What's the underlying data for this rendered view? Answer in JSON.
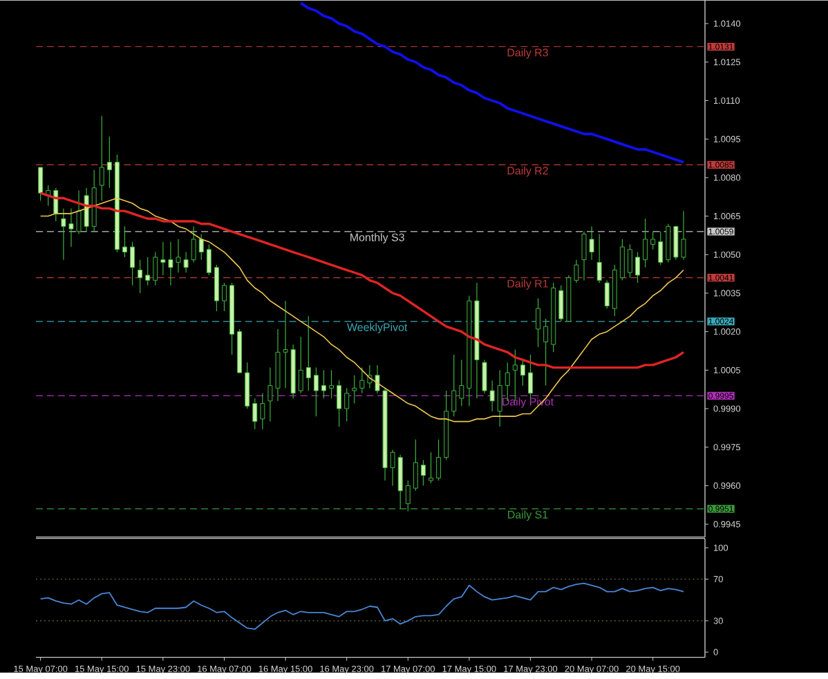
{
  "chart_data": [
    {
      "type": "candlestick",
      "categories": [
        null,
        null,
        null,
        null,
        null,
        null,
        null,
        null,
        null,
        null,
        null,
        null,
        null,
        null,
        null,
        null,
        null,
        null,
        null,
        null,
        null,
        null,
        null,
        null,
        null,
        null,
        null,
        null,
        null,
        null,
        null,
        null,
        null,
        null,
        null,
        null,
        null,
        null,
        null,
        null,
        null,
        null,
        null,
        null,
        null,
        null,
        null,
        null,
        null,
        null,
        null,
        null,
        null,
        null,
        null,
        null,
        null,
        null,
        null,
        null,
        null,
        null,
        null,
        null,
        null,
        null,
        null,
        null,
        null,
        null,
        null,
        null,
        null,
        null,
        null,
        null,
        null,
        null,
        null,
        null,
        null,
        null,
        null,
        null,
        null
      ],
      "ohlc": [
        [
          1.0084,
          1.0084,
          1.0071,
          1.0074
        ],
        [
          1.0073,
          1.0077,
          1.0069,
          1.0075
        ],
        [
          1.0075,
          1.0076,
          1.0063,
          1.0066
        ],
        [
          1.0064,
          1.0068,
          1.0048,
          1.0061
        ],
        [
          1.0062,
          1.0068,
          1.0053,
          1.006
        ],
        [
          1.0059,
          1.0075,
          1.0058,
          1.0067
        ],
        [
          1.0073,
          1.0076,
          1.0059,
          1.0061
        ],
        [
          1.0061,
          1.0083,
          1.0059,
          1.0076
        ],
        [
          1.0077,
          1.0104,
          1.0071,
          1.0084
        ],
        [
          1.0086,
          1.0096,
          1.0076,
          1.0083
        ],
        [
          1.0086,
          1.0089,
          1.0051,
          1.0052
        ],
        [
          1.0053,
          1.0061,
          1.0049,
          1.0051
        ],
        [
          1.0053,
          1.0055,
          1.0038,
          1.0045
        ],
        [
          1.0044,
          1.0048,
          1.0035,
          1.0041
        ],
        [
          1.0042,
          1.0049,
          1.0038,
          1.004
        ],
        [
          1.004,
          1.0051,
          1.0038,
          1.0049
        ],
        [
          1.0048,
          1.0055,
          1.0042,
          1.0047
        ],
        [
          1.0048,
          1.0055,
          1.0038,
          1.0045
        ],
        [
          1.0047,
          1.0056,
          1.0043,
          1.0049
        ],
        [
          1.0048,
          1.0051,
          1.0043,
          1.0045
        ],
        [
          1.0048,
          1.0061,
          1.0047,
          1.0056
        ],
        [
          1.0056,
          1.0058,
          1.0048,
          1.0051
        ],
        [
          1.0052,
          1.0054,
          1.0042,
          1.0043
        ],
        [
          1.0045,
          1.0046,
          1.0028,
          1.0032
        ],
        [
          1.0032,
          1.0039,
          1.0028,
          1.0038
        ],
        [
          1.0038,
          1.0039,
          1.0011,
          1.0019
        ],
        [
          1.002,
          1.0021,
          1.0004,
          1.0004
        ],
        [
          1.0004,
          1.0008,
          0.999,
          0.9991
        ],
        [
          0.9992,
          0.9994,
          0.9982,
          0.9985
        ],
        [
          0.9986,
          0.9996,
          0.9982,
          0.9992
        ],
        [
          0.9993,
          1.0006,
          0.9985,
          0.9999
        ],
        [
          0.9998,
          1.0021,
          0.9993,
          1.0012
        ],
        [
          1.0012,
          1.0032,
          0.9998,
          1.0013
        ],
        [
          1.0013,
          1.0015,
          0.9994,
          0.9996
        ],
        [
          0.9997,
          1.0018,
          0.9996,
          1.0005
        ],
        [
          1.0006,
          1.0026,
          0.9997,
          1.0002
        ],
        [
          1.0003,
          1.0006,
          0.9987,
          0.9997
        ],
        [
          0.9999,
          1.0005,
          0.9994,
          0.9997
        ],
        [
          0.9998,
          1.0005,
          0.9994,
          0.9999
        ],
        [
          0.9999,
          1.0001,
          0.9983,
          0.999
        ],
        [
          0.999,
          0.9998,
          0.9985,
          0.9996
        ],
        [
          0.9997,
          1.0003,
          0.9992,
          0.9998
        ],
        [
          0.9998,
          1.0006,
          0.9996,
          1.0001
        ],
        [
          1.0,
          1.0007,
          0.9998,
          1.0003
        ],
        [
          1.0003,
          1.0007,
          0.9996,
          0.9997
        ],
        [
          0.9997,
          0.9998,
          0.9962,
          0.9967
        ],
        [
          0.9967,
          0.9974,
          0.996,
          0.9973
        ],
        [
          0.9971,
          0.9972,
          0.9951,
          0.9958
        ],
        [
          0.9953,
          0.9962,
          0.995,
          0.996
        ],
        [
          0.9959,
          0.9978,
          0.9958,
          0.9969
        ],
        [
          0.9968,
          0.997,
          0.996,
          0.9964
        ],
        [
          0.9962,
          0.9973,
          0.9961,
          0.9963
        ],
        [
          0.9963,
          0.9978,
          0.9962,
          0.9971
        ],
        [
          0.9971,
          0.9997,
          0.997,
          0.9989
        ],
        [
          0.9989,
          1.0011,
          0.9987,
          0.9997
        ],
        [
          0.9994,
          1.0009,
          0.9991,
          0.9999
        ],
        [
          0.9998,
          1.0034,
          0.9991,
          1.0032
        ],
        [
          1.0032,
          1.0039,
          0.9994,
          1.0009
        ],
        [
          1.0008,
          1.0009,
          0.9996,
          0.9997
        ],
        [
          0.9997,
          1.0001,
          0.9989,
          0.9993
        ],
        [
          0.9989,
          1.0005,
          0.9983,
          0.9999
        ],
        [
          0.9999,
          1.0008,
          0.9993,
          1.0004
        ],
        [
          1.0005,
          1.0013,
          0.9993,
          1.0007
        ],
        [
          1.0007,
          1.0009,
          0.9999,
          1.0003
        ],
        [
          1.0004,
          1.0011,
          0.9994,
          0.9996
        ],
        [
          1.0021,
          1.0033,
          1.0014,
          1.0029
        ],
        [
          1.0016,
          1.0025,
          0.9999,
          1.0022
        ],
        [
          1.0015,
          1.0039,
          1.0012,
          1.0037
        ],
        [
          1.0036,
          1.0038,
          1.0024,
          1.0025
        ],
        [
          1.0024,
          1.0042,
          1.0024,
          1.0041
        ],
        [
          1.004,
          1.0048,
          1.0039,
          1.0046
        ],
        [
          1.0048,
          1.0059,
          1.004,
          1.0058
        ],
        [
          1.0056,
          1.0061,
          1.0048,
          1.0051
        ],
        [
          1.0047,
          1.0058,
          1.0039,
          1.004
        ],
        [
          1.0039,
          1.004,
          1.0029,
          1.003
        ],
        [
          1.0029,
          1.0046,
          1.0026,
          1.0044
        ],
        [
          1.0041,
          1.0056,
          1.004,
          1.0053
        ],
        [
          1.0043,
          1.0054,
          1.0041,
          1.0052
        ],
        [
          1.0049,
          1.0051,
          1.0039,
          1.0042
        ],
        [
          1.0048,
          1.0064,
          1.0045,
          1.0056
        ],
        [
          1.0054,
          1.0059,
          1.0052,
          1.0056
        ],
        [
          1.0055,
          1.0059,
          1.0046,
          1.0047
        ],
        [
          1.0048,
          1.0062,
          1.0047,
          1.0061
        ],
        [
          1.0061,
          1.0061,
          1.0048,
          1.0049
        ],
        [
          1.0049,
          1.0067,
          1.0048,
          1.0056
        ]
      ],
      "series": [
        {
          "type": "line",
          "color": "#f0c850",
          "values": [
            1.0065,
            1.0065,
            1.0066,
            1.0066,
            1.0066,
            1.0067,
            1.0068,
            1.0069,
            1.007,
            1.0071,
            1.0072,
            1.0071,
            1.007,
            1.0068,
            1.0067,
            1.0065,
            1.0064,
            1.0063,
            1.0061,
            1.006,
            1.0058,
            1.0056,
            1.0055,
            1.0053,
            1.0051,
            1.0048,
            1.0045,
            1.004,
            1.0037,
            1.0035,
            1.0032,
            1.003,
            1.0028,
            1.0026,
            1.0024,
            1.0022,
            1.002,
            1.0018,
            1.0015,
            1.0013,
            1.001,
            1.0008,
            1.0005,
            1.0002,
            1.0,
            0.9998,
            0.9996,
            0.9994,
            0.9992,
            0.9991,
            0.9989,
            0.9987,
            0.9986,
            0.9986,
            0.9985,
            0.9985,
            0.9985,
            0.9986,
            0.9986,
            0.9987,
            0.9987,
            0.9987,
            0.9987,
            0.9988,
            0.9988,
            0.9991,
            0.9994,
            0.9998,
            1.0002,
            1.0005,
            1.0009,
            1.0013,
            1.0017,
            1.0019,
            1.002,
            1.0022,
            1.0024,
            1.0026,
            1.0029,
            1.0031,
            1.0034,
            1.0036,
            1.0039,
            1.0041,
            1.0044
          ]
        },
        {
          "type": "line",
          "color": "#e02424",
          "values": [
            1.0074,
            1.0073,
            1.0072,
            1.0072,
            1.0071,
            1.007,
            1.0069,
            1.0069,
            1.0068,
            1.0068,
            1.0067,
            1.0067,
            1.0066,
            1.0065,
            1.0064,
            1.0064,
            1.0063,
            1.0063,
            1.0063,
            1.0063,
            1.0063,
            1.0062,
            1.0062,
            1.0061,
            1.006,
            1.0059,
            1.0058,
            1.0057,
            1.0056,
            1.0055,
            1.0054,
            1.0053,
            1.0052,
            1.0051,
            1.005,
            1.0049,
            1.0048,
            1.0047,
            1.0046,
            1.0045,
            1.0044,
            1.0043,
            1.0042,
            1.004,
            1.0039,
            1.0037,
            1.0035,
            1.0034,
            1.0032,
            1.003,
            1.0028,
            1.0026,
            1.0024,
            1.0022,
            1.0021,
            1.002,
            1.0018,
            1.0017,
            1.0015,
            1.0014,
            1.0013,
            1.0012,
            1.001,
            1.0009,
            1.0008,
            1.0007,
            1.0007,
            1.0006,
            1.0006,
            1.0006,
            1.0006,
            1.0006,
            1.0006,
            1.0006,
            1.0006,
            1.0006,
            1.0006,
            1.0006,
            1.0006,
            1.0007,
            1.0007,
            1.0008,
            1.0009,
            1.001,
            1.0012
          ]
        },
        {
          "type": "line",
          "color": "#1010e8",
          "values": [
            null,
            null,
            null,
            null,
            null,
            null,
            null,
            null,
            null,
            null,
            null,
            null,
            null,
            null,
            null,
            null,
            null,
            null,
            null,
            null,
            null,
            null,
            null,
            null,
            null,
            null,
            null,
            null,
            null,
            null,
            null,
            null,
            null,
            null,
            1.0148,
            1.0146,
            1.0145,
            1.0143,
            1.0142,
            1.014,
            1.0139,
            1.0137,
            1.0136,
            1.0134,
            1.0132,
            1.0131,
            1.0129,
            1.0128,
            1.0126,
            1.0125,
            1.0123,
            1.0122,
            1.012,
            1.0119,
            1.0117,
            1.0116,
            1.0114,
            1.0113,
            1.0111,
            1.011,
            1.0109,
            1.0107,
            1.0106,
            1.0105,
            1.0104,
            1.0103,
            1.0102,
            1.0101,
            1.01,
            1.0099,
            1.0098,
            1.0097,
            1.0097,
            1.0096,
            1.0095,
            1.0094,
            1.0093,
            1.0092,
            1.0091,
            1.0091,
            1.009,
            1.0089,
            1.0088,
            1.0087,
            1.0086
          ]
        }
      ],
      "ylim": [
        0.994,
        1.0149
      ],
      "yticks": [
        {
          "value": 1.014,
          "label": "1.0140"
        },
        {
          "value": 1.0125,
          "label": "1.0125"
        },
        {
          "value": 1.011,
          "label": "1.0110"
        },
        {
          "value": 1.0095,
          "label": "1.0095"
        },
        {
          "value": 1.008,
          "label": "1.0080"
        },
        {
          "value": 1.0065,
          "label": "1.0065"
        },
        {
          "value": 1.005,
          "label": "1.0050"
        },
        {
          "value": 1.0035,
          "label": "1.0035"
        },
        {
          "value": 1.002,
          "label": "1.0020"
        },
        {
          "value": 1.0005,
          "label": "1.0005"
        },
        {
          "value": 0.999,
          "label": "0.9990"
        },
        {
          "value": 0.9975,
          "label": "0.9975"
        },
        {
          "value": 0.996,
          "label": "0.9960"
        },
        {
          "value": 0.9945,
          "label": "0.9945"
        }
      ],
      "tick_labels": "y",
      "ref_lines": [
        {
          "axis": "y",
          "value": 1.0131,
          "label": "Daily R3",
          "color": "#c03a3a",
          "line_style": "dashed"
        },
        {
          "axis": "y",
          "value": 1.0085,
          "label": "Daily R2",
          "color": "#c03a3a",
          "line_style": "dashed"
        },
        {
          "axis": "y",
          "value": 1.0059,
          "label": "Monthly S3",
          "color": "#c8c8c8",
          "line_style": "dashed"
        },
        {
          "axis": "y",
          "value": 1.0041,
          "label": "Daily R1",
          "color": "#c03a3a",
          "line_style": "dashed"
        },
        {
          "axis": "y",
          "value": 1.0024,
          "label": "WeeklyPivot",
          "color": "#3aa8b8",
          "line_style": "dashed"
        },
        {
          "axis": "y",
          "value": 0.9995,
          "label": "Daily Pivot",
          "color": "#b030b8",
          "line_style": "dashed"
        },
        {
          "axis": "y",
          "value": 0.9951,
          "label": "Daily S1",
          "color": "#3a9a3a",
          "line_style": "dashed"
        }
      ],
      "annotations": [
        "1.0131",
        "1.0085",
        "1.0059",
        "1.0041",
        "1.0024",
        "0.9995",
        "0.9951"
      ]
    },
    {
      "type": "line",
      "categories": [
        "15 May 07:00",
        null,
        null,
        null,
        null,
        null,
        null,
        null,
        "15 May 15:00",
        null,
        null,
        null,
        null,
        null,
        null,
        null,
        "15 May 23:00",
        null,
        null,
        null,
        null,
        null,
        null,
        null,
        "16 May 07:00",
        null,
        null,
        null,
        null,
        null,
        null,
        null,
        "16 May 15:00",
        null,
        null,
        null,
        null,
        null,
        null,
        null,
        "16 May 23:00",
        null,
        null,
        null,
        null,
        null,
        null,
        null,
        "17 May 07:00",
        null,
        null,
        null,
        null,
        null,
        null,
        null,
        "17 May 15:00",
        null,
        null,
        null,
        null,
        null,
        null,
        null,
        "17 May 23:00",
        null,
        null,
        null,
        null,
        null,
        null,
        null,
        "20 May 07:00",
        null,
        null,
        null,
        null,
        null,
        null,
        null,
        "20 May 15:00",
        null,
        null,
        null,
        null
      ],
      "series": [
        {
          "color": "#4a86d8",
          "values": [
            51,
            52,
            49,
            47,
            46,
            50,
            46,
            52,
            56,
            57,
            45,
            43,
            41,
            39,
            38,
            42,
            42,
            42,
            42,
            43,
            49,
            45,
            42,
            38,
            39,
            33,
            28,
            23,
            22,
            28,
            34,
            38,
            40,
            36,
            39,
            38,
            38,
            38,
            36,
            34,
            39,
            39,
            41,
            44,
            43,
            30,
            32,
            27,
            30,
            34,
            35,
            35,
            36,
            44,
            51,
            53,
            64,
            58,
            53,
            50,
            51,
            52,
            54,
            52,
            50,
            58,
            58,
            62,
            60,
            63,
            65,
            66,
            64,
            62,
            58,
            58,
            61,
            58,
            59,
            61,
            62,
            59,
            61,
            60,
            58
          ]
        }
      ],
      "ylim": [
        -5,
        109
      ],
      "yticks": [
        0,
        30,
        70,
        100
      ],
      "ref_lines": [
        {
          "axis": "y",
          "value": 70,
          "color": "#6f7a40",
          "line_style": "dotted"
        },
        {
          "axis": "y",
          "value": 30,
          "color": "#6f7a40",
          "line_style": "dotted"
        }
      ]
    }
  ]
}
